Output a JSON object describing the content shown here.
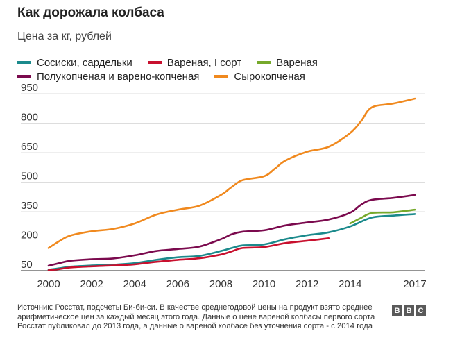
{
  "header": {
    "title": "Как дорожала колбаса",
    "subtitle": "Цена за кг, рублей"
  },
  "chart_data": {
    "type": "line",
    "title": "Как дорожала колбаса",
    "subtitle": "Цена за кг, рублей",
    "xlabel": "",
    "ylabel": "",
    "xlim": [
      2000,
      2017
    ],
    "ylim": [
      50,
      950
    ],
    "yticks": [
      50,
      200,
      350,
      500,
      650,
      800,
      950
    ],
    "yticklabels": [
      "50",
      "200",
      "350",
      "500",
      "650",
      "800",
      "950"
    ],
    "xticks": [
      2000,
      2002,
      2004,
      2006,
      2008,
      2010,
      2012,
      2014,
      2017
    ],
    "xticklabels": [
      "2000",
      "2002",
      "2004",
      "2006",
      "2008",
      "2010",
      "2012",
      "2014",
      "2017"
    ],
    "grid": "horizontal",
    "legend_placement": "top",
    "series": [
      {
        "name": "Сосиски, сардельки",
        "color": "#1b8a8c",
        "x": [
          2000,
          2000.5,
          2001,
          2002,
          2003,
          2004,
          2005,
          2006,
          2007,
          2008,
          2008.5,
          2009,
          2010,
          2011,
          2012,
          2013,
          2014,
          2015,
          2016,
          2017
        ],
        "y": [
          55,
          62,
          70,
          76,
          80,
          88,
          105,
          118,
          125,
          150,
          165,
          178,
          183,
          210,
          230,
          245,
          275,
          320,
          330,
          338
        ]
      },
      {
        "name": "Вареная, I сорт",
        "color": "#c8102e",
        "x": [
          2000,
          2000.5,
          2001,
          2002,
          2003,
          2004,
          2005,
          2006,
          2007,
          2008,
          2008.5,
          2009,
          2010,
          2011,
          2012,
          2013
        ],
        "y": [
          52,
          58,
          66,
          72,
          76,
          82,
          95,
          105,
          113,
          132,
          148,
          165,
          170,
          190,
          202,
          215
        ]
      },
      {
        "name": "Вареная",
        "color": "#76a92b",
        "x": [
          2014,
          2014.5,
          2015,
          2016,
          2017
        ],
        "y": [
          290,
          318,
          343,
          347,
          360
        ]
      },
      {
        "name": "Полукопченая и варено-копченая",
        "color": "#7b0a4e",
        "x": [
          2000,
          2000.5,
          2001,
          2002,
          2003,
          2004,
          2005,
          2006,
          2007,
          2008,
          2008.5,
          2009,
          2010,
          2011,
          2012,
          2013,
          2014,
          2014.5,
          2015,
          2016,
          2017
        ],
        "y": [
          75,
          88,
          100,
          108,
          112,
          128,
          150,
          160,
          172,
          210,
          235,
          248,
          255,
          280,
          295,
          310,
          345,
          385,
          410,
          420,
          435
        ]
      },
      {
        "name": "Сырокопченая",
        "color": "#f0891e",
        "x": [
          2000,
          2000.5,
          2001,
          2002,
          2003,
          2004,
          2005,
          2006,
          2007,
          2008,
          2008.5,
          2009,
          2010,
          2010.5,
          2011,
          2012,
          2013,
          2014,
          2014.5,
          2015,
          2016,
          2017
        ],
        "y": [
          165,
          200,
          228,
          250,
          262,
          290,
          335,
          360,
          380,
          435,
          475,
          510,
          530,
          568,
          610,
          655,
          680,
          750,
          810,
          880,
          900,
          925
        ]
      }
    ]
  },
  "footer": {
    "source_text": "Источник: Росстат, подсчеты Би-би-си. В качестве среднегодовой цены на продукт взято среднее арифметическое цен за каждый месяц этого года. Данные о цене вареной колбасы первого сорта Росстат публиковал до 2013 года, а данные о вареной колбасе без уточнения сорта - с 2014 года",
    "logo_letters": [
      "B",
      "B",
      "C"
    ]
  }
}
